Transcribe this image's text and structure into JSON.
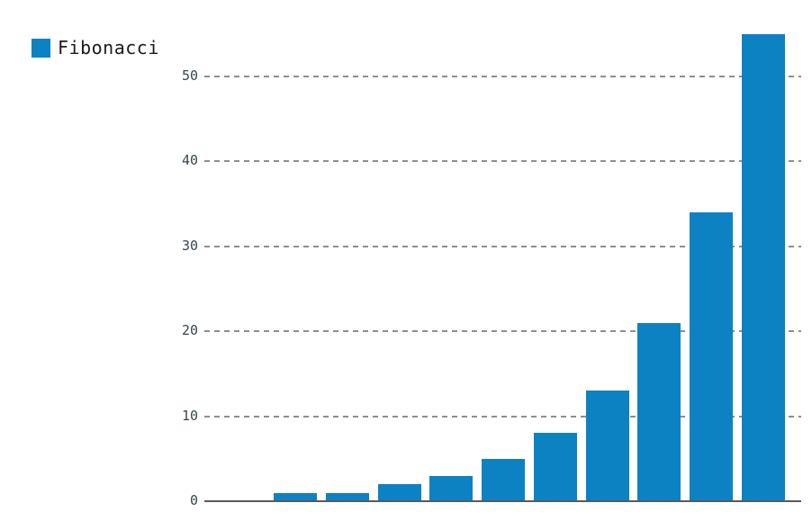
{
  "legend": {
    "label": "Fibonacci",
    "position": "top-left"
  },
  "chart_data": {
    "type": "bar",
    "title": "",
    "xlabel": "",
    "ylabel": "",
    "series": [
      {
        "name": "Fibonacci",
        "values": [
          1,
          1,
          2,
          3,
          5,
          8,
          13,
          21,
          34,
          55
        ]
      }
    ],
    "categories": [
      "",
      "",
      "",
      "",
      "",
      "",
      "",
      "",
      "",
      ""
    ],
    "x_tick_labels_visible": false,
    "y_ticks": [
      0,
      10,
      20,
      30,
      40,
      50
    ],
    "ylim": [
      0,
      59
    ],
    "grid": "horizontal-dashed",
    "legend_position": "top-left",
    "bar_color": "#0d82c3",
    "grid_color": "#8e8e8e",
    "axis_color": "#5a5a5a",
    "tick_label_color": "#37474f"
  }
}
